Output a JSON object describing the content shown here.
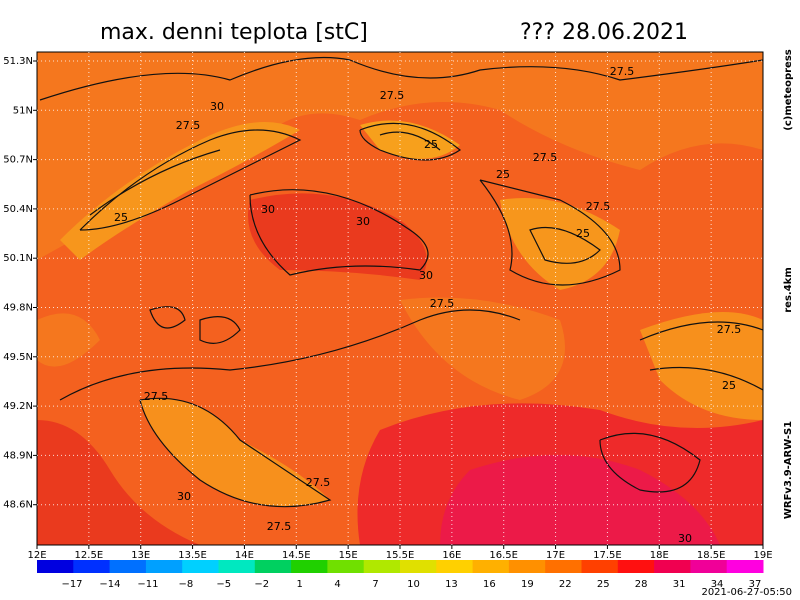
{
  "title": "max. denni teplota [stC]",
  "date": "??? 28.06.2021",
  "longitude_labels": [
    "12E",
    "12.5E",
    "13E",
    "13.5E",
    "14E",
    "14.5E",
    "15E",
    "15.5E",
    "16E",
    "16.5E",
    "17E",
    "17.5E",
    "18E",
    "18.5E",
    "19E"
  ],
  "latitude_labels": [
    "51.3N",
    "51N",
    "50.7N",
    "50.4N",
    "50.1N",
    "49.8N",
    "49.5N",
    "49.2N",
    "48.9N",
    "48.6N"
  ],
  "contour_labels": [
    "30",
    "27.5",
    "27.5",
    "25",
    "27.5",
    "27.5",
    "25",
    "27.5",
    "25",
    "30",
    "30",
    "25",
    "30",
    "27.5",
    "27.5",
    "25",
    "27.5",
    "30",
    "27.5",
    "27.5",
    "30"
  ],
  "colorbar_labels": [
    "−17",
    "−14",
    "−11",
    "−8",
    "−5",
    "−2",
    "1",
    "4",
    "7",
    "10",
    "13",
    "16",
    "19",
    "22",
    "25",
    "28",
    "31",
    "34",
    "37"
  ],
  "side_texts": {
    "copyright": "(c)meteopress",
    "resolution": "res.4km",
    "model": "WRFv3.9-ARW-S1"
  },
  "timestamp": "2021-06-27-05:50"
}
